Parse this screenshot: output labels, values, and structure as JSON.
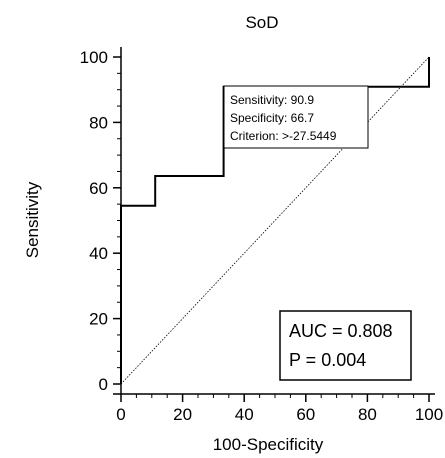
{
  "chart_data": {
    "type": "line",
    "title": "SoD",
    "xlabel": "100-Specificity",
    "ylabel": "Sensitivity",
    "xlim": [
      0,
      100
    ],
    "ylim": [
      0,
      100
    ],
    "x_ticks": [
      0,
      20,
      40,
      60,
      80,
      100
    ],
    "y_ticks": [
      0,
      20,
      40,
      60,
      80,
      100
    ],
    "grid": false,
    "series": [
      {
        "name": "",
        "style": "step",
        "color": "#000000",
        "x": [
          0,
          0,
          0,
          11.1,
          11.1,
          33.3,
          33.3,
          100,
          100
        ],
        "y": [
          0,
          54.5,
          54.5,
          54.5,
          63.6,
          63.6,
          90.9,
          90.9,
          100
        ]
      },
      {
        "name": "",
        "style": "dotted-reference",
        "color": "#000000",
        "x": [
          0,
          100
        ],
        "y": [
          0,
          100
        ]
      }
    ],
    "annotations": {
      "criterion_box": {
        "lines": [
          "Sensitivity: 90.9",
          "Specificity: 66.7",
          "Criterion: >-27.5449"
        ]
      },
      "stats_box": {
        "lines": [
          "AUC = 0.808",
          "P = 0.004"
        ]
      }
    }
  }
}
